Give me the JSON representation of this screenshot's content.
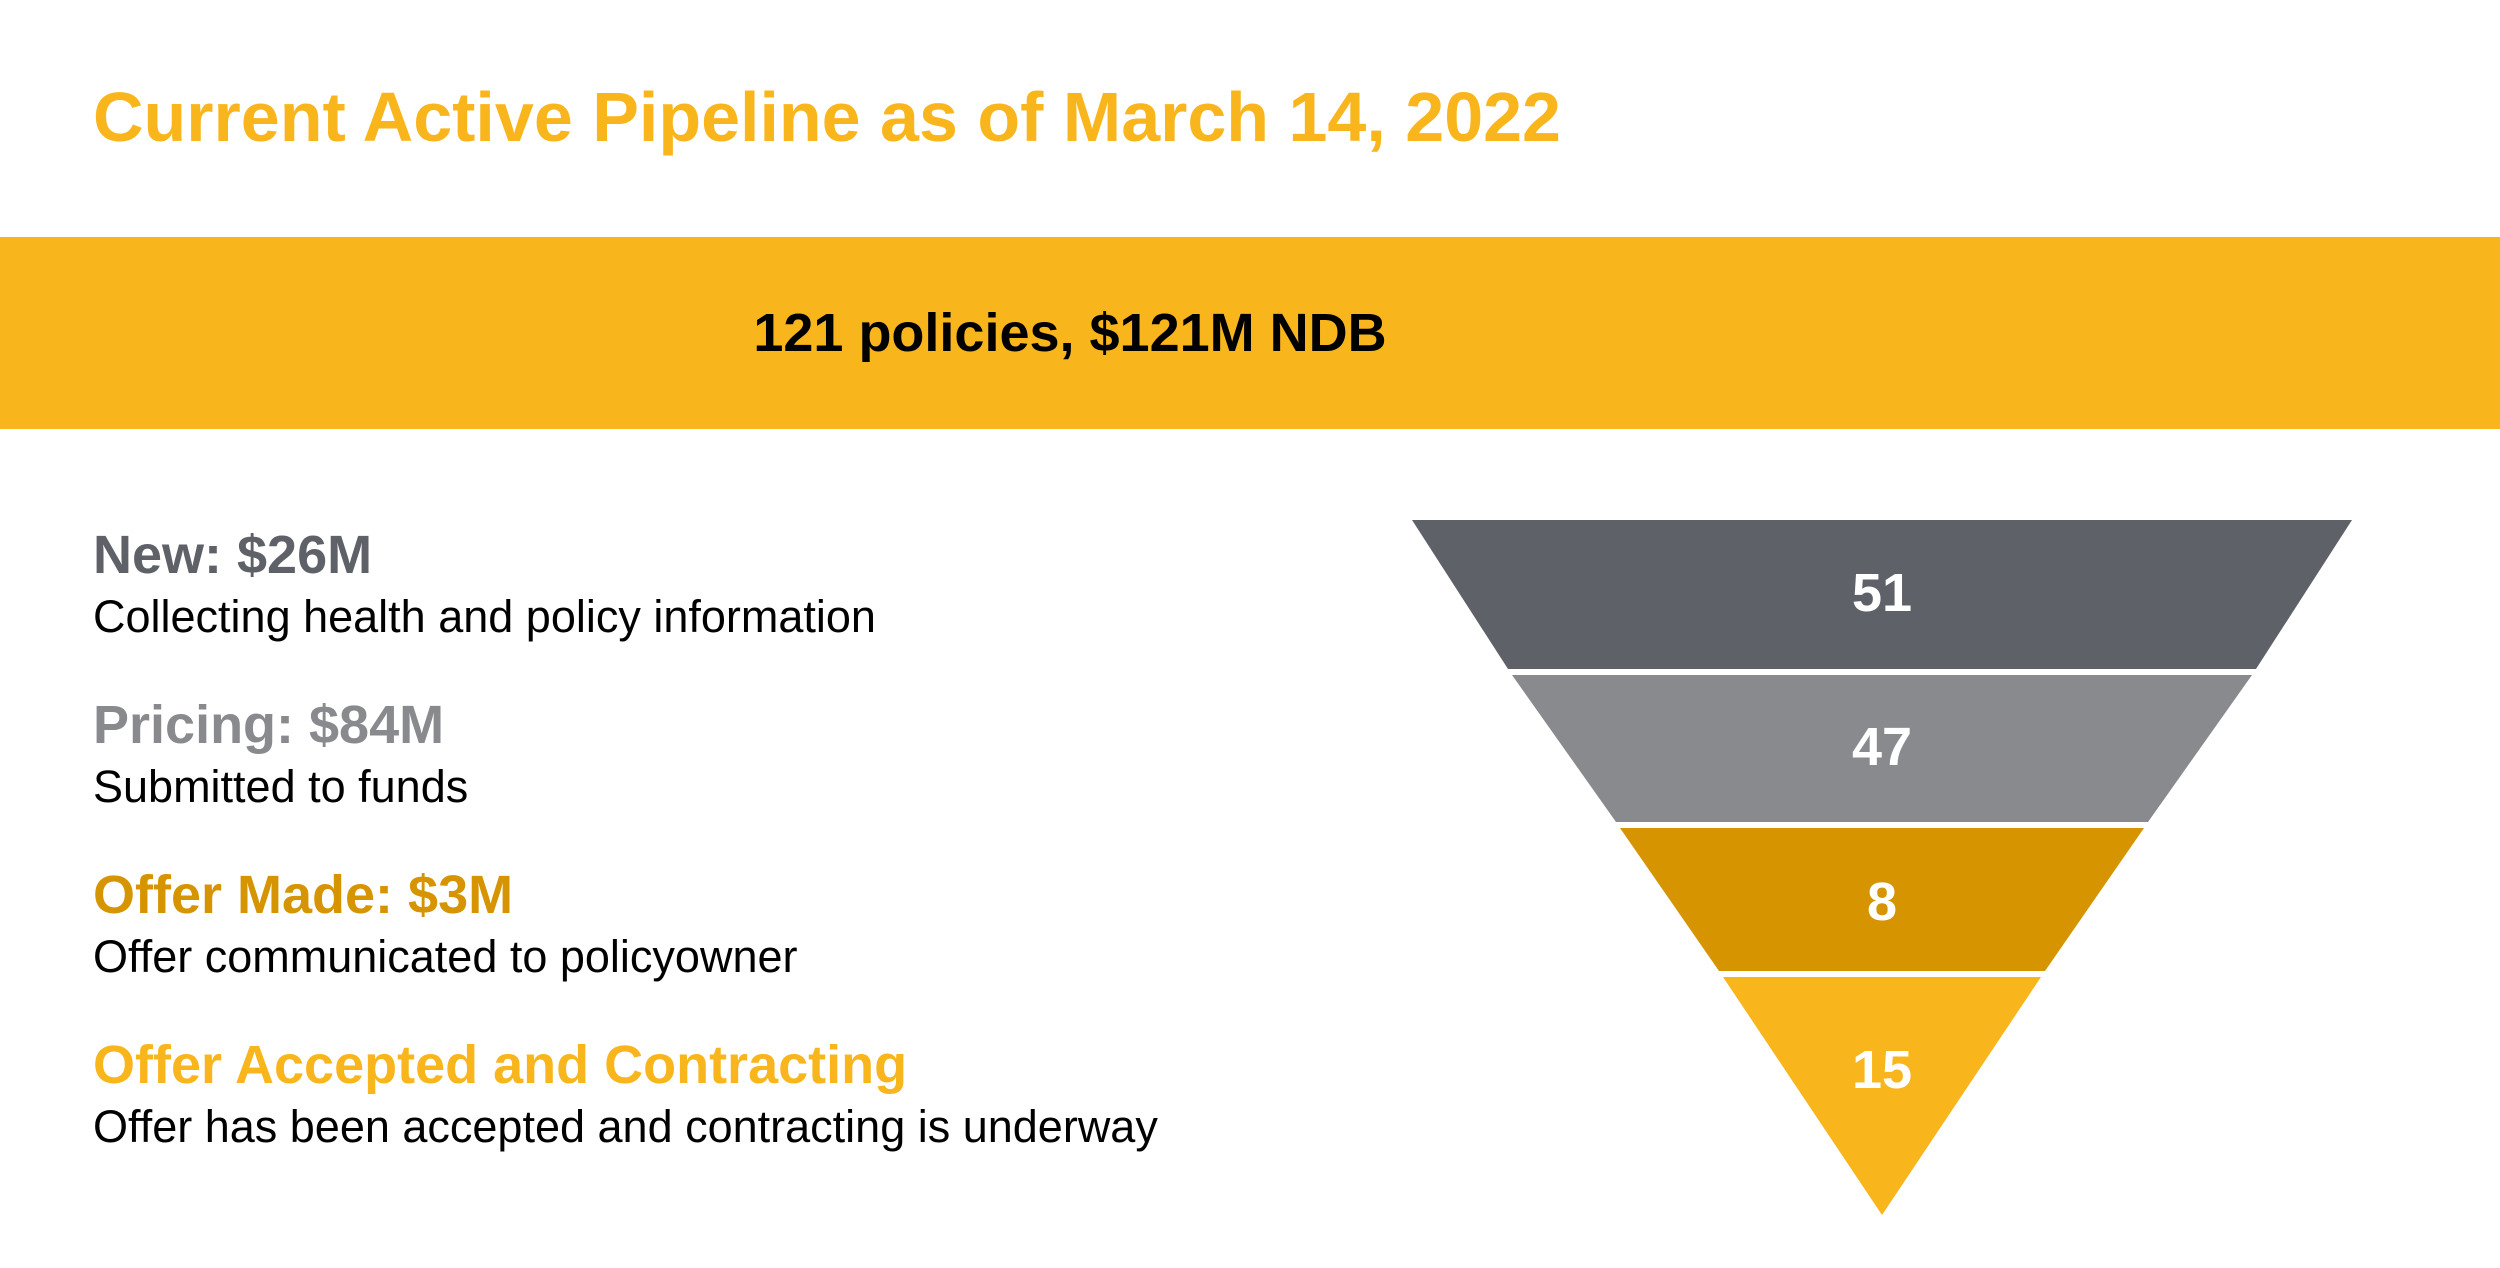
{
  "slide": {
    "title": "Current Active Pipeline as of March 14, 2022",
    "banner": "121 policies, $121M NDB"
  },
  "stages": [
    {
      "heading": "New: $26M",
      "description": "Collecting health and policy information",
      "color": "#5f6169"
    },
    {
      "heading": "Pricing: $84M",
      "description": "Submitted to funds",
      "color": "#898a8e"
    },
    {
      "heading": "Offer Made: $3M",
      "description": "Offer communicated to policyowner",
      "color": "#d59400"
    },
    {
      "heading": "Offer Accepted and Contracting",
      "description": "Offer has been accepted and contracting is underway",
      "color": "#f9b51c"
    }
  ],
  "funnel": {
    "levels": [
      {
        "count": "51",
        "value": 51,
        "color": "#5f6169"
      },
      {
        "count": "47",
        "value": 47,
        "color": "#898a8e"
      },
      {
        "count": "8",
        "value": 8,
        "color": "#d59400"
      },
      {
        "count": "15",
        "value": 15,
        "color": "#f9b51c"
      }
    ]
  }
}
